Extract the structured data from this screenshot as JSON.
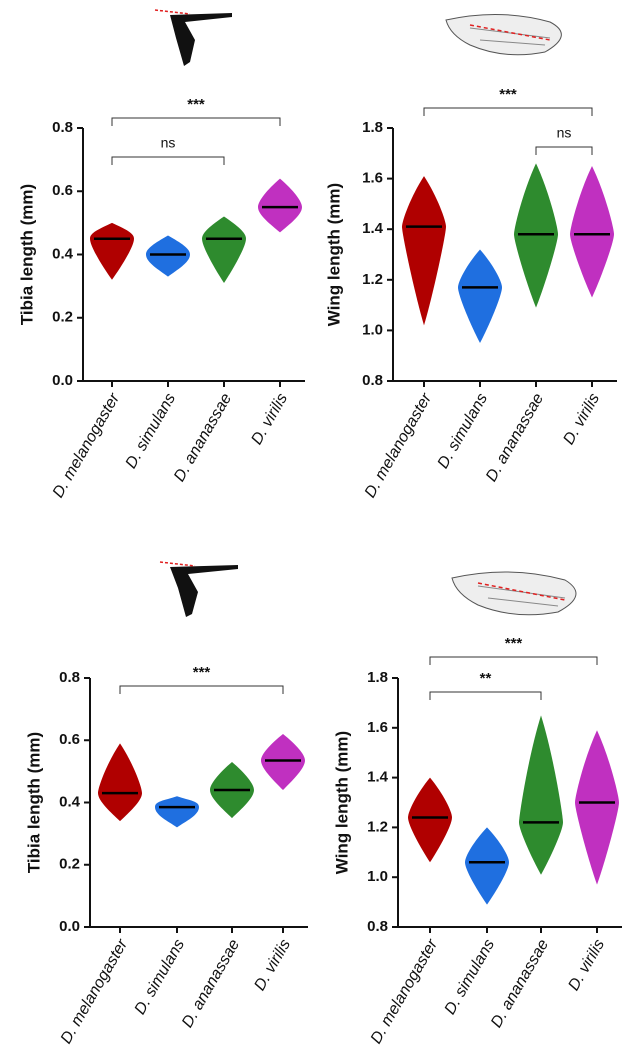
{
  "chart_data": [
    {
      "type": "swarm",
      "ylabel": "Tibia length (mm)",
      "categories": [
        "D. melanogaster",
        "D. simulans",
        "D. ananassae",
        "D. virilis"
      ],
      "colors": [
        "#b00000",
        "#1f6fe0",
        "#2e8b2e",
        "#c030c0"
      ],
      "median": [
        0.45,
        0.4,
        0.45,
        0.55
      ],
      "min": [
        0.32,
        0.33,
        0.31,
        0.47
      ],
      "max": [
        0.5,
        0.46,
        0.52,
        0.64
      ],
      "ylim": [
        0,
        0.8
      ],
      "yticks": [
        {
          "value": 0,
          "label": "0.0"
        },
        0.2,
        0.4,
        0.6,
        0.8
      ],
      "annotations": [
        {
          "text": "***",
          "between": [
            0,
            3
          ]
        },
        {
          "text": "ns",
          "between": [
            0,
            2
          ]
        }
      ]
    },
    {
      "type": "swarm",
      "ylabel": "Wing length (mm)",
      "categories": [
        "D. melanogaster",
        "D. simulans",
        "D. ananassae",
        "D. virilis"
      ],
      "colors": [
        "#b00000",
        "#1f6fe0",
        "#2e8b2e",
        "#c030c0"
      ],
      "median": [
        1.41,
        1.17,
        1.38,
        1.38
      ],
      "min": [
        1.02,
        0.95,
        1.09,
        1.13
      ],
      "max": [
        1.61,
        1.32,
        1.66,
        1.65
      ],
      "ylim": [
        0.8,
        1.8
      ],
      "yticks": [
        0.8,
        {
          "value": 1,
          "label": "1.0"
        },
        1.2,
        1.4,
        1.6,
        1.8
      ],
      "annotations": [
        {
          "text": "***",
          "between": [
            0,
            3
          ]
        },
        {
          "text": "ns",
          "between": [
            2,
            3
          ]
        }
      ]
    },
    {
      "type": "swarm",
      "ylabel": "Tibia length (mm)",
      "categories": [
        "D. melanogaster",
        "D. simulans",
        "D. ananassae",
        "D. virilis"
      ],
      "colors": [
        "#b00000",
        "#1f6fe0",
        "#2e8b2e",
        "#c030c0"
      ],
      "median": [
        0.43,
        0.385,
        0.44,
        0.535
      ],
      "min": [
        0.34,
        0.32,
        0.35,
        0.44
      ],
      "max": [
        0.59,
        0.42,
        0.53,
        0.62
      ],
      "ylim": [
        0,
        0.8
      ],
      "yticks": [
        {
          "value": 0,
          "label": "0.0"
        },
        0.2,
        0.4,
        0.6,
        0.8
      ],
      "annotations": [
        {
          "text": "***",
          "between": [
            0,
            3
          ]
        }
      ]
    },
    {
      "type": "swarm",
      "ylabel": "Wing length (mm)",
      "categories": [
        "D. melanogaster",
        "D. simulans",
        "D. ananassae",
        "D. virilis"
      ],
      "colors": [
        "#b00000",
        "#1f6fe0",
        "#2e8b2e",
        "#c030c0"
      ],
      "median": [
        1.24,
        1.06,
        1.22,
        1.3
      ],
      "min": [
        1.06,
        0.89,
        1.01,
        0.97
      ],
      "max": [
        1.4,
        1.2,
        1.65,
        1.59
      ],
      "ylim": [
        0.8,
        1.8
      ],
      "yticks": [
        0.8,
        {
          "value": 1,
          "label": "1.0"
        },
        1.2,
        1.4,
        1.6,
        1.8
      ],
      "annotations": [
        {
          "text": "***",
          "between": [
            0,
            3
          ]
        },
        {
          "text": "**",
          "between": [
            0,
            2
          ]
        }
      ]
    }
  ]
}
